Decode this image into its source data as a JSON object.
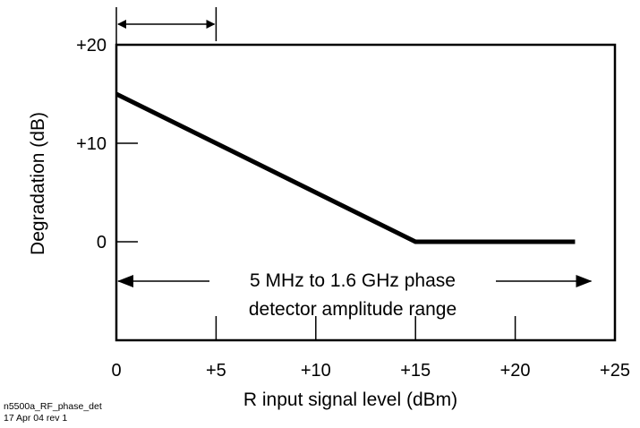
{
  "chart_data": {
    "type": "line",
    "title": "",
    "xlabel": "R input signal level (dBm)",
    "ylabel": "Degradation (dB)",
    "xlim": [
      0,
      25
    ],
    "ylim": [
      -10,
      20
    ],
    "x_ticks": [
      0,
      5,
      10,
      15,
      20,
      25
    ],
    "x_tick_labels": [
      "0",
      "+5",
      "+10",
      "+15",
      "+20",
      "+25"
    ],
    "y_ticks": [
      0,
      10,
      20
    ],
    "y_tick_labels": [
      "0",
      "+10",
      "+20"
    ],
    "grid": false,
    "series": [
      {
        "x": [
          0,
          15,
          23
        ],
        "y": [
          15,
          0,
          0
        ]
      }
    ],
    "annotations": {
      "range_text_line1": "5 MHz to 1.6 GHz phase",
      "range_text_line2": "detector amplitude range",
      "range_arrow_x": [
        0,
        23
      ],
      "range_arrow_y": -4,
      "top_arrow_x": [
        0,
        5
      ]
    }
  },
  "footnote": {
    "line1": "n5500a_RF_phase_det",
    "line2": "17 Apr 04  rev 1"
  }
}
